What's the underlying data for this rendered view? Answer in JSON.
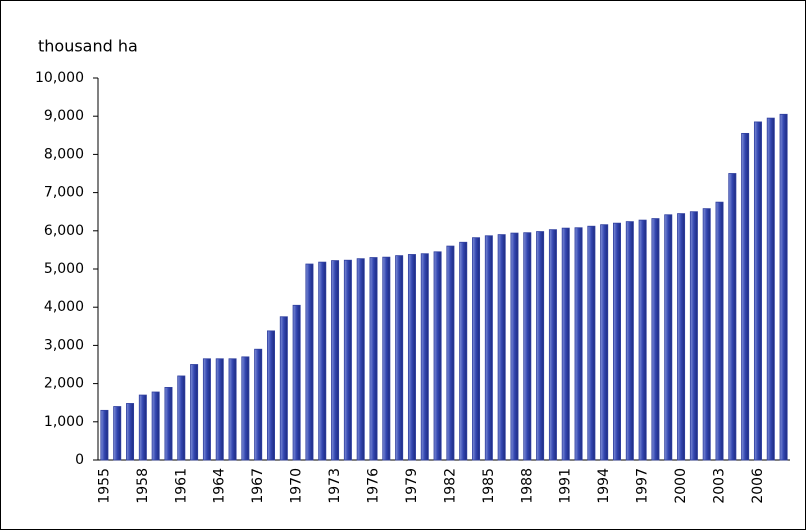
{
  "chart_data": {
    "type": "bar",
    "y_label": "thousand ha",
    "categories": [
      "1955",
      null,
      null,
      "1958",
      null,
      null,
      "1961",
      null,
      null,
      "1964",
      null,
      null,
      "1967",
      null,
      null,
      "1970",
      null,
      null,
      "1973",
      null,
      null,
      "1976",
      null,
      null,
      "1979",
      null,
      null,
      "1982",
      null,
      null,
      "1985",
      null,
      null,
      "1988",
      null,
      null,
      "1991",
      null,
      null,
      "1994",
      null,
      null,
      "1997",
      null,
      null,
      "2000",
      null,
      null,
      "2003",
      null,
      null,
      "2006",
      null,
      null
    ],
    "values": [
      1300,
      1400,
      1480,
      1700,
      1780,
      1900,
      2200,
      2500,
      2650,
      2650,
      2650,
      2700,
      2900,
      3380,
      3750,
      4050,
      5130,
      5180,
      5220,
      5230,
      5270,
      5300,
      5310,
      5350,
      5380,
      5400,
      5450,
      5600,
      5700,
      5820,
      5870,
      5900,
      5940,
      5950,
      5980,
      6030,
      6070,
      6080,
      6120,
      6160,
      6200,
      6240,
      6280,
      6320,
      6420,
      6450,
      6500,
      6580,
      6750,
      7500,
      8550,
      8850,
      8950,
      9050
    ],
    "color": "#2f3f9f",
    "ylim": [
      0,
      10000
    ],
    "yticks": [
      0,
      {
        "value": 1000,
        "label": "1,000"
      },
      {
        "value": 2000,
        "label": "2,000"
      },
      {
        "value": 3000,
        "label": "3,000"
      },
      {
        "value": 4000,
        "label": "4,000"
      },
      {
        "value": 5000,
        "label": "5,000"
      },
      {
        "value": 6000,
        "label": "6,000"
      },
      {
        "value": 7000,
        "label": "7,000"
      },
      {
        "value": 8000,
        "label": "8,000"
      },
      {
        "value": 9000,
        "label": "9,000"
      },
      {
        "value": 10000,
        "label": "10,000"
      }
    ],
    "grid": false
  }
}
